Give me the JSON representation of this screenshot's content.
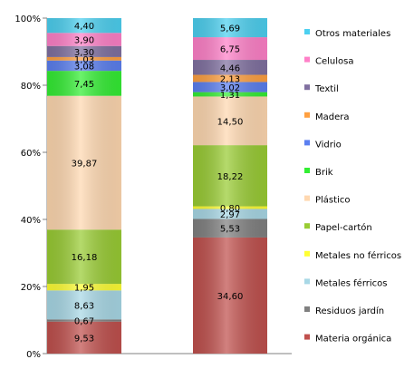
{
  "chart_data": {
    "type": "bar",
    "stacked": true,
    "stack_mode": "percent",
    "categories": [
      "",
      ""
    ],
    "ylim": [
      0,
      100
    ],
    "yticks": [
      0,
      20,
      40,
      60,
      80,
      100
    ],
    "ytick_labels": [
      "0%",
      "20%",
      "40%",
      "60%",
      "80%",
      "100%"
    ],
    "title": "",
    "xlabel": "",
    "ylabel": "",
    "grid": false,
    "legend_position": "right",
    "series": [
      {
        "name": "Materia orgánica",
        "color": "#c0504d",
        "values": [
          9.53,
          34.6
        ],
        "labels": [
          "9,53",
          "34,60"
        ]
      },
      {
        "name": "Residuos jardín",
        "color": "#808080",
        "values": [
          0.67,
          5.53
        ],
        "labels": [
          "0,67",
          "5,53"
        ]
      },
      {
        "name": "Metales férricos",
        "color": "#a8d8e6",
        "values": [
          8.63,
          2.97
        ],
        "labels": [
          "8,63",
          "2,97"
        ]
      },
      {
        "name": "Metales no férricos",
        "color": "#ffff33",
        "values": [
          1.95,
          0.8
        ],
        "labels": [
          "1,95",
          "0,80"
        ]
      },
      {
        "name": "Papel-cartón",
        "color": "#99cc33",
        "values": [
          16.18,
          18.22
        ],
        "labels": [
          "16,18",
          "18,22"
        ]
      },
      {
        "name": "Plástico",
        "color": "#ffd8b0",
        "values": [
          39.87,
          14.5
        ],
        "labels": [
          "39,87",
          "14,50"
        ]
      },
      {
        "name": "Brik",
        "color": "#33ee33",
        "values": [
          7.45,
          1.31
        ],
        "labels": [
          "7,45",
          "1,31"
        ]
      },
      {
        "name": "Vidrio",
        "color": "#5b7ff0",
        "values": [
          3.08,
          3.02
        ],
        "labels": [
          "3,08",
          "3,02"
        ]
      },
      {
        "name": "Madera",
        "color": "#ffa040",
        "values": [
          1.03,
          2.13
        ],
        "labels": [
          "1,03",
          "2,13"
        ]
      },
      {
        "name": "Textil",
        "color": "#8070a0",
        "values": [
          3.3,
          4.46
        ],
        "labels": [
          "3,30",
          "4,46"
        ]
      },
      {
        "name": "Celulosa",
        "color": "#ff80c8",
        "values": [
          3.9,
          6.75
        ],
        "labels": [
          "3,90",
          "6,75"
        ]
      },
      {
        "name": "Otros materiales",
        "color": "#4cd0f0",
        "values": [
          4.4,
          5.69
        ],
        "labels": [
          "4,40",
          "5,69"
        ]
      }
    ]
  }
}
